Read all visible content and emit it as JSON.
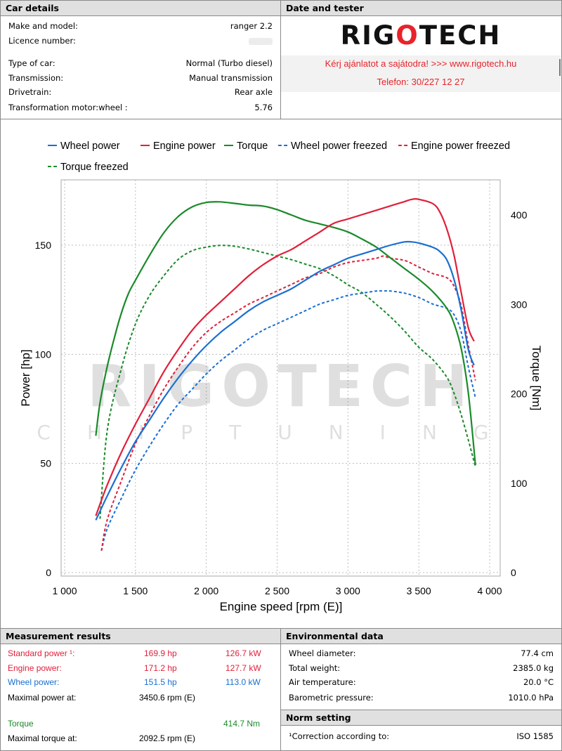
{
  "car_details": {
    "header": "Car details",
    "rows": [
      {
        "key": "Make and model:",
        "value": "ranger 2.2"
      },
      {
        "key": "Licence number:",
        "value": ""
      },
      {
        "key": "Type of car:",
        "value": "Normal (Turbo diesel)"
      },
      {
        "key": "Transmission:",
        "value": "Manual transmission"
      },
      {
        "key": "Drivetrain:",
        "value": "Rear axle"
      },
      {
        "key": "Transformation motor:wheel :",
        "value": "5.76"
      }
    ]
  },
  "date_tester": {
    "header": "Date and tester",
    "brand_left": "RIG",
    "brand_mid": "O",
    "brand_right": "TECH",
    "offer_line1": "Kérj ajánlatot a sajátodra!  >>>  www.rigotech.hu",
    "offer_line2": "Telefon: 30/227 12 27"
  },
  "watermark": {
    "title": "RIGOTECH",
    "sub": "CHIPTUNING"
  },
  "chart_data": {
    "type": "line",
    "xlabel": "Engine speed [rpm (E)]",
    "ylabel_left": "Power [hp]",
    "ylabel_right": "Torque [Nm]",
    "xlim": [
      1000,
      4000
    ],
    "ylim_left": [
      0,
      180
    ],
    "ylim_right": [
      0,
      435
    ],
    "x_ticks": [
      1000,
      1500,
      2000,
      2500,
      3000,
      3500,
      4000
    ],
    "x_tick_labels": [
      "1 000",
      "1 500",
      "2 000",
      "2 500",
      "3 000",
      "3 500",
      "4 000"
    ],
    "y_ticks_left": [
      0,
      50,
      100,
      150
    ],
    "y_ticks_right": [
      0,
      100,
      200,
      300,
      400
    ],
    "legend_placement": "top",
    "series": [
      {
        "name": "Wheel power",
        "axis": "left",
        "color": "#1a6fd1",
        "dashed": false,
        "x": [
          1220,
          1300,
          1400,
          1500,
          1600,
          1700,
          1800,
          1900,
          2000,
          2100,
          2200,
          2300,
          2400,
          2500,
          2600,
          2700,
          2800,
          2900,
          3000,
          3100,
          3200,
          3300,
          3400,
          3450,
          3500,
          3600,
          3650,
          3700,
          3750,
          3800,
          3850,
          3890
        ],
        "y": [
          24,
          35,
          48,
          60,
          70,
          80,
          89,
          97,
          104,
          110,
          115,
          120,
          124,
          127,
          130,
          134,
          138,
          141,
          144,
          146,
          148,
          150,
          151.5,
          151.5,
          151,
          149,
          147,
          143,
          134,
          120,
          102,
          95
        ]
      },
      {
        "name": "Engine power",
        "axis": "left",
        "color": "#e0203a",
        "dashed": false,
        "x": [
          1220,
          1300,
          1400,
          1500,
          1600,
          1700,
          1800,
          1900,
          2000,
          2100,
          2200,
          2300,
          2400,
          2500,
          2600,
          2700,
          2800,
          2900,
          3000,
          3100,
          3200,
          3300,
          3400,
          3450,
          3500,
          3600,
          3650,
          3700,
          3750,
          3800,
          3850,
          3890
        ],
        "y": [
          26,
          40,
          55,
          68,
          80,
          92,
          102,
          111,
          118,
          124,
          130,
          136,
          141,
          145,
          148,
          152,
          156,
          160,
          162,
          164,
          166,
          168,
          170,
          171,
          171,
          169,
          165,
          157,
          145,
          128,
          112,
          106
        ]
      },
      {
        "name": "Torque",
        "axis": "right",
        "color": "#1a8a2a",
        "dashed": false,
        "x": [
          1220,
          1250,
          1300,
          1350,
          1400,
          1450,
          1500,
          1600,
          1700,
          1800,
          1900,
          2000,
          2092,
          2200,
          2300,
          2400,
          2500,
          2600,
          2700,
          2800,
          2900,
          3000,
          3100,
          3200,
          3300,
          3400,
          3500,
          3600,
          3700,
          3750,
          3800,
          3850,
          3900
        ],
        "y": [
          153,
          190,
          230,
          262,
          290,
          312,
          327,
          355,
          380,
          398,
          409,
          414,
          414.7,
          413,
          411,
          410,
          406,
          400,
          394,
          390,
          386,
          381,
          373,
          364,
          352,
          340,
          328,
          314,
          295,
          278,
          250,
          200,
          120
        ]
      },
      {
        "name": "Wheel power freezed",
        "axis": "left",
        "color": "#1a6fd1",
        "dashed": true,
        "x": [
          1260,
          1300,
          1400,
          1500,
          1600,
          1700,
          1800,
          1900,
          2000,
          2100,
          2200,
          2300,
          2400,
          2500,
          2600,
          2700,
          2800,
          2900,
          3000,
          3100,
          3200,
          3250,
          3300,
          3400,
          3500,
          3600,
          3700,
          3750,
          3800,
          3850,
          3900
        ],
        "y": [
          10,
          20,
          34,
          47,
          58,
          68,
          77,
          84,
          91,
          97,
          102,
          107,
          111,
          114,
          117,
          120,
          123,
          125,
          127,
          128,
          129,
          129,
          129,
          128,
          126,
          123,
          121,
          118,
          110,
          94,
          80
        ]
      },
      {
        "name": "Engine power freezed",
        "axis": "left",
        "color": "#e0203a",
        "dashed": true,
        "x": [
          1260,
          1300,
          1400,
          1500,
          1600,
          1700,
          1800,
          1900,
          2000,
          2100,
          2200,
          2300,
          2400,
          2500,
          2600,
          2700,
          2800,
          2900,
          3000,
          3100,
          3200,
          3250,
          3300,
          3400,
          3500,
          3600,
          3700,
          3750,
          3800,
          3850,
          3900
        ],
        "y": [
          10,
          24,
          42,
          59,
          72,
          84,
          94,
          103,
          110,
          115,
          119,
          123,
          126,
          129,
          132,
          135,
          137,
          140,
          142,
          143,
          144,
          145,
          144,
          143,
          140,
          137,
          135,
          131,
          122,
          104,
          88
        ]
      },
      {
        "name": "Torque freezed",
        "axis": "right",
        "color": "#1a8a2a",
        "dashed": true,
        "x": [
          1250,
          1300,
          1400,
          1500,
          1600,
          1700,
          1800,
          1900,
          2000,
          2100,
          2200,
          2300,
          2400,
          2500,
          2600,
          2700,
          2800,
          2900,
          3000,
          3100,
          3200,
          3300,
          3400,
          3500,
          3600,
          3700,
          3750,
          3800,
          3850,
          3900
        ],
        "y": [
          60,
          158,
          228,
          278,
          310,
          332,
          350,
          360,
          364,
          366,
          365,
          362,
          358,
          354,
          350,
          345,
          340,
          332,
          322,
          313,
          300,
          286,
          270,
          252,
          238,
          218,
          200,
          176,
          148,
          118
        ]
      }
    ]
  },
  "measurement": {
    "header": "Measurement results",
    "standard_label": "Standard power ¹:",
    "standard_hp": "169.9 hp",
    "standard_kw": "126.7 kW",
    "engine_label": "Engine power:",
    "engine_hp": "171.2 hp",
    "engine_kw": "127.7 kW",
    "wheel_label": "Wheel power:",
    "wheel_hp": "151.5 hp",
    "wheel_kw": "113.0 kW",
    "max_power_label": "Maximal power at:",
    "max_power_value": "3450.6 rpm (E)",
    "torque_label": "Torque",
    "torque_value": "414.7 Nm",
    "max_torque_label": "Maximal torque at:",
    "max_torque_value": "2092.5 rpm (E)",
    "colors": {
      "standard": "#e0203a",
      "engine": "#e0203a",
      "wheel": "#1a6fd1",
      "torque": "#1a8a2a"
    }
  },
  "environmental": {
    "header": "Environmental data",
    "rows": [
      {
        "key": "Wheel diameter:",
        "value": "77.4 cm"
      },
      {
        "key": "Total weight:",
        "value": "2385.0 kg"
      },
      {
        "key": "Air temperature:",
        "value": "20.0 °C"
      },
      {
        "key": "Barometric pressure:",
        "value": "1010.0 hPa"
      }
    ]
  },
  "norm": {
    "header": "Norm setting",
    "key": "¹Correction according to:",
    "value": "ISO 1585"
  }
}
